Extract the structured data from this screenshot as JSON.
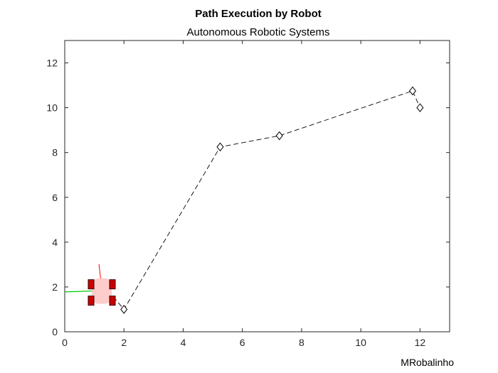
{
  "chart_data": {
    "type": "line",
    "title": "Path Execution by Robot",
    "subtitle": "Autonomous Robotic Systems",
    "xlabel": "",
    "ylabel": "",
    "xlim": [
      0,
      13
    ],
    "ylim": [
      0,
      13
    ],
    "x_ticks": [
      0,
      2,
      4,
      6,
      8,
      10,
      12
    ],
    "y_ticks": [
      0,
      2,
      4,
      6,
      8,
      10,
      12
    ],
    "grid": false,
    "legend": "none",
    "series": [
      {
        "style": "dashed-black-with-diamond-markers",
        "color": "#000000",
        "x": [
          1.3,
          2.0,
          5.25,
          7.25,
          11.75,
          12.0
        ],
        "y": [
          2.1,
          1.0,
          8.25,
          8.75,
          10.75,
          10.0
        ],
        "markers": [
          [
            2.0,
            1.0
          ],
          [
            5.25,
            8.25
          ],
          [
            7.25,
            8.75
          ],
          [
            11.75,
            10.75
          ],
          [
            12.0,
            10.0
          ]
        ]
      },
      {
        "style": "solid-green-trail",
        "color": "#00cc00",
        "x": [
          0.0,
          0.9,
          1.3
        ],
        "y": [
          1.78,
          1.82,
          1.95
        ]
      }
    ],
    "robot": {
      "x": 1.25,
      "y": 1.85,
      "body_color": "#ffcccc",
      "wheel_color": "#cc0000",
      "heading_color": "#ff0000"
    }
  },
  "footer": {
    "credit": "MRobalinho"
  }
}
